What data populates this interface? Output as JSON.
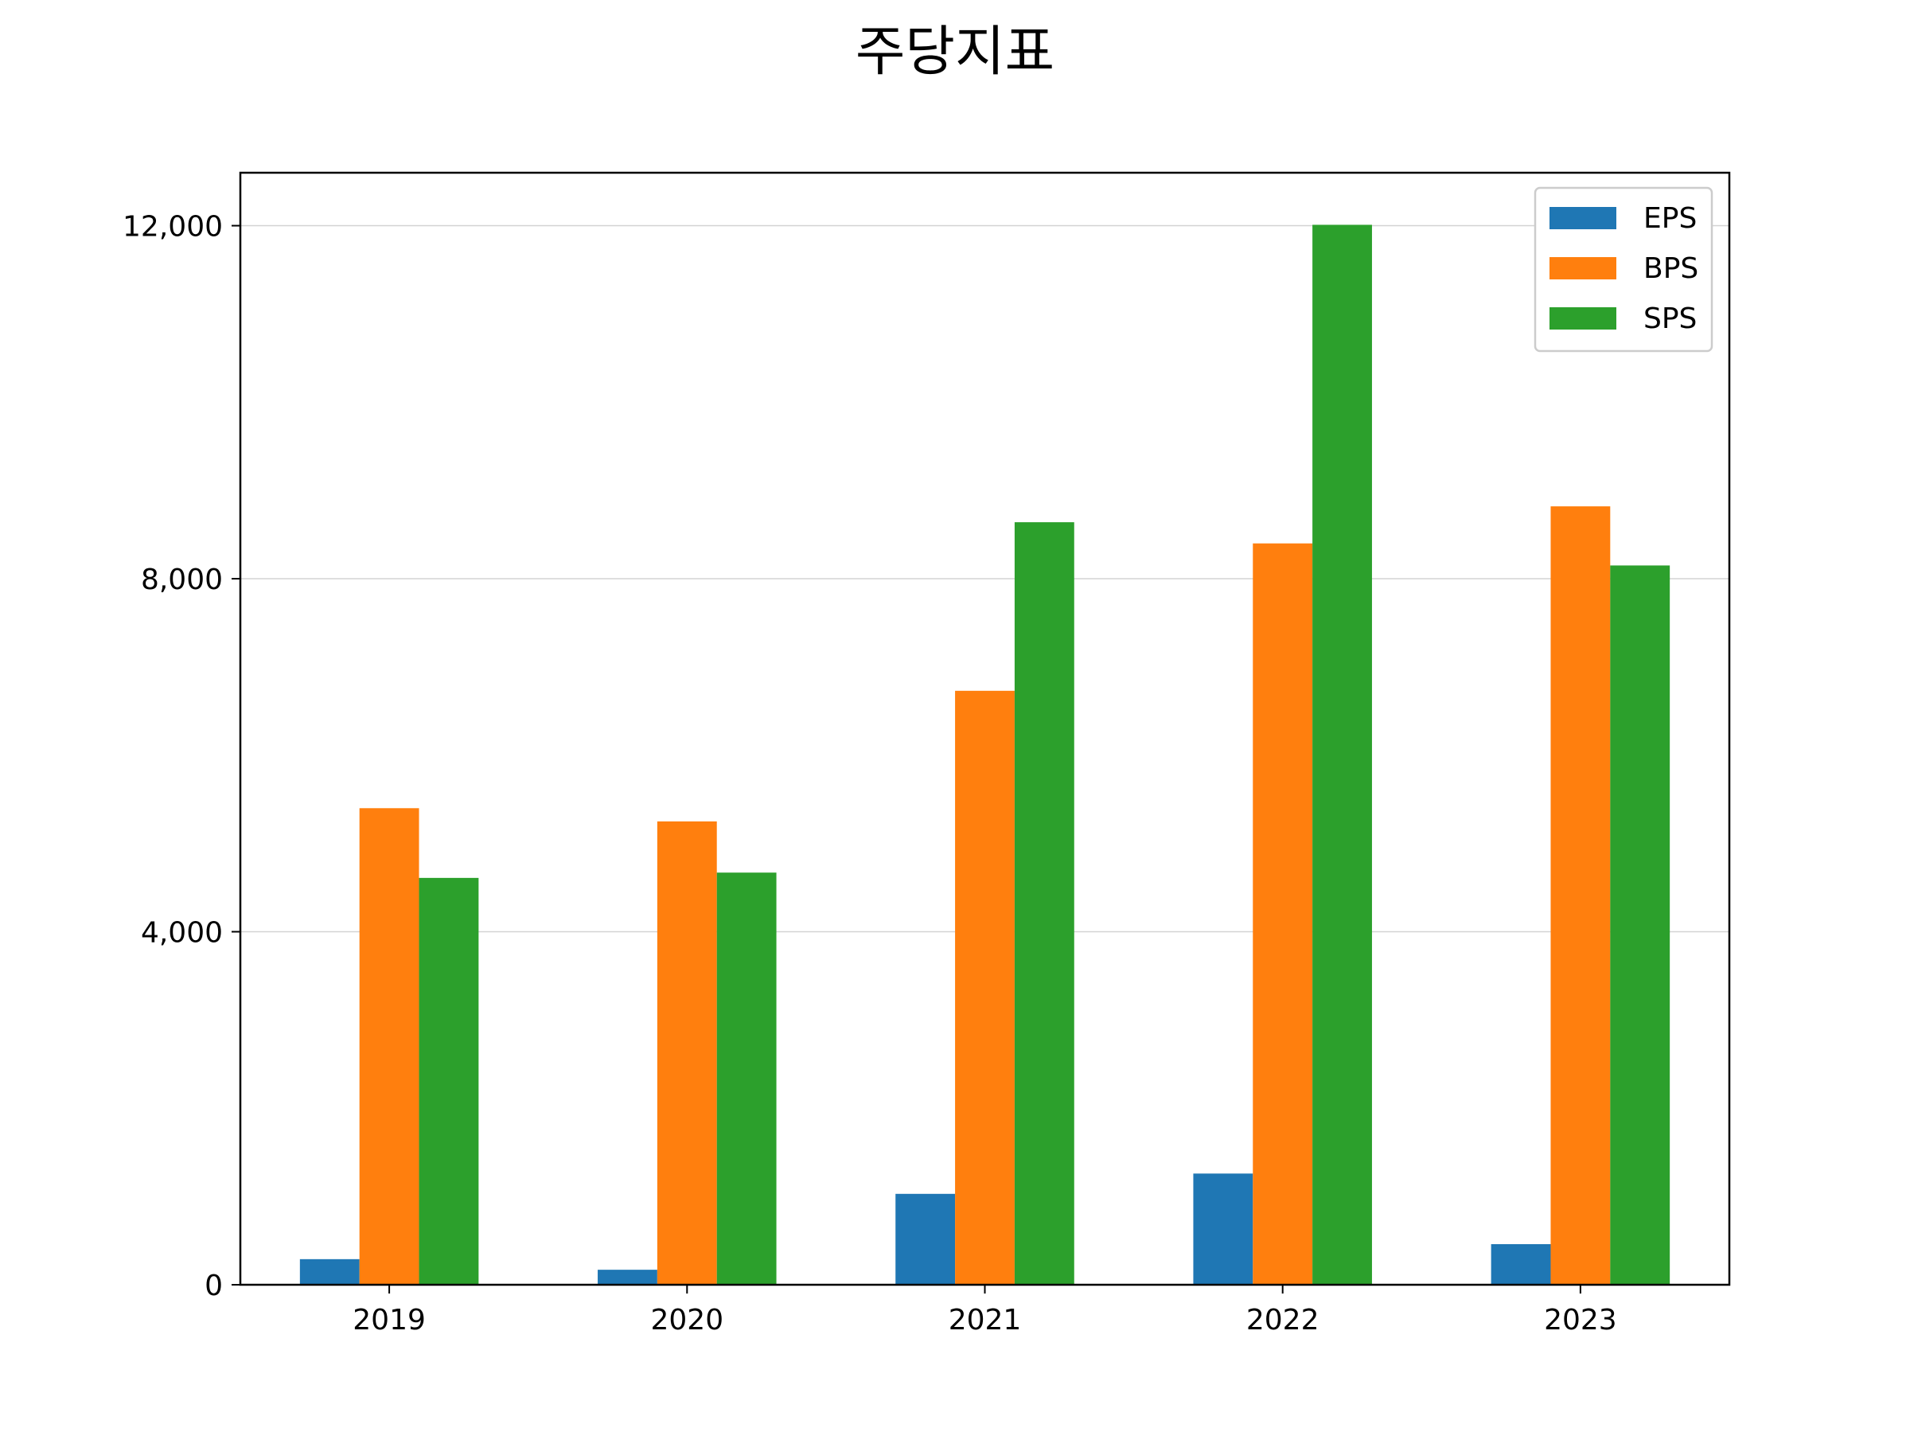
{
  "chart_data": {
    "type": "bar",
    "title": "주당지표",
    "xlabel": "",
    "ylabel": "",
    "categories": [
      "2019",
      "2020",
      "2021",
      "2022",
      "2023"
    ],
    "series": [
      {
        "name": "EPS",
        "color": "#1f77b4",
        "values": [
          290,
          170,
          1030,
          1260,
          460
        ]
      },
      {
        "name": "BPS",
        "color": "#ff7f0e",
        "values": [
          5400,
          5250,
          6730,
          8400,
          8820
        ]
      },
      {
        "name": "SPS",
        "color": "#2ca02c",
        "values": [
          4610,
          4670,
          8640,
          12010,
          8150
        ]
      }
    ],
    "ylim": [
      0,
      12600
    ],
    "yticks": [
      0,
      4000,
      8000,
      12000
    ],
    "ytick_labels": [
      "0",
      "4,000",
      "8,000",
      "12,000"
    ],
    "grid": "y-axis only",
    "legend_position": "top-right"
  }
}
